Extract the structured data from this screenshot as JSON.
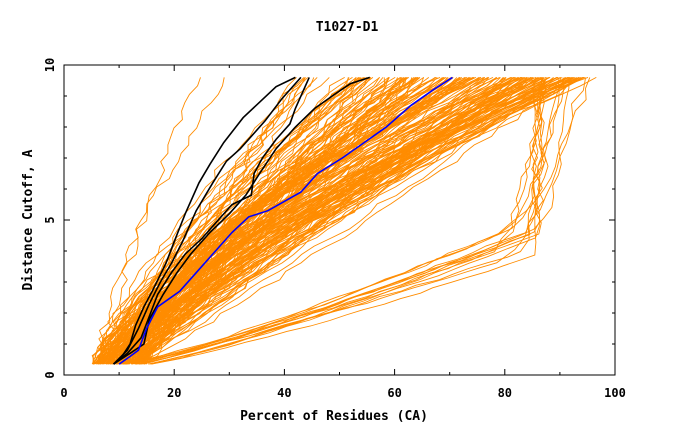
{
  "chart_data": {
    "type": "line",
    "title": "T1027-D1",
    "xlabel": "Percent of Residues (CA)",
    "ylabel": "Distance Cutoff, A",
    "xlim": [
      0,
      100
    ],
    "ylim": [
      0,
      10
    ],
    "x_ticks": [
      "0",
      "20",
      "40",
      "60",
      "80",
      "100"
    ],
    "y_ticks": [
      "0",
      "5",
      "10"
    ],
    "grid": false,
    "legend": "none",
    "colors": {
      "others": "#ff8c00",
      "highlight_black": "#000000",
      "highlight_blue": "#0000ff"
    },
    "highlight_series": [
      {
        "color": "#000000",
        "points": [
          [
            9,
            0.35
          ],
          [
            10.5,
            0.6
          ],
          [
            12,
            1.0
          ],
          [
            13,
            1.6
          ],
          [
            14.5,
            2.2
          ],
          [
            16,
            2.7
          ],
          [
            18.5,
            3.6
          ],
          [
            20,
            4.3
          ],
          [
            22,
            5.2
          ],
          [
            24.5,
            6.2
          ],
          [
            26.5,
            6.8
          ],
          [
            29,
            7.5
          ],
          [
            32.5,
            8.3
          ],
          [
            35.5,
            8.8
          ],
          [
            38.5,
            9.3
          ],
          [
            42,
            9.6
          ]
        ]
      },
      {
        "color": "#000000",
        "points": [
          [
            9,
            0.35
          ],
          [
            11.5,
            0.8
          ],
          [
            13.5,
            1.5
          ],
          [
            15.5,
            2.3
          ],
          [
            17.5,
            3.0
          ],
          [
            19.5,
            3.6
          ],
          [
            21.5,
            4.3
          ],
          [
            24,
            5.3
          ],
          [
            27,
            6.2
          ],
          [
            29.5,
            6.9
          ],
          [
            32,
            7.3
          ],
          [
            34,
            7.7
          ],
          [
            36.5,
            8.2
          ],
          [
            39.5,
            8.9
          ],
          [
            43,
            9.6
          ]
        ]
      },
      {
        "color": "#000000",
        "points": [
          [
            9,
            0.35
          ],
          [
            11.5,
            0.7
          ],
          [
            14,
            1.2
          ],
          [
            15.5,
            1.9
          ],
          [
            17,
            2.6
          ],
          [
            19.5,
            3.3
          ],
          [
            22,
            3.9
          ],
          [
            25,
            4.4
          ],
          [
            27.5,
            4.9
          ],
          [
            30.5,
            5.5
          ],
          [
            34,
            5.8
          ],
          [
            34.5,
            6.5
          ],
          [
            36,
            7.0
          ],
          [
            38.5,
            7.6
          ],
          [
            41,
            8.1
          ],
          [
            42,
            8.6
          ],
          [
            44.5,
            9.6
          ]
        ]
      },
      {
        "color": "#000000",
        "points": [
          [
            9,
            0.35
          ],
          [
            12,
            0.7
          ],
          [
            14.5,
            1.0
          ],
          [
            15.5,
            1.8
          ],
          [
            18,
            2.6
          ],
          [
            20.5,
            3.3
          ],
          [
            23,
            3.9
          ],
          [
            26.5,
            4.6
          ],
          [
            30,
            5.2
          ],
          [
            33,
            5.8
          ],
          [
            35.5,
            6.5
          ],
          [
            38.5,
            7.3
          ],
          [
            42,
            8.0
          ],
          [
            45.5,
            8.6
          ],
          [
            49.5,
            9.1
          ],
          [
            52,
            9.4
          ],
          [
            55.5,
            9.6
          ]
        ]
      },
      {
        "color": "#0000ff",
        "points": [
          [
            10,
            0.35
          ],
          [
            12,
            0.6
          ],
          [
            13.5,
            0.8
          ],
          [
            15,
            1.5
          ],
          [
            17,
            2.2
          ],
          [
            21,
            2.7
          ],
          [
            24,
            3.3
          ],
          [
            27.5,
            4.0
          ],
          [
            30.5,
            4.6
          ],
          [
            33.5,
            5.1
          ],
          [
            37,
            5.3
          ],
          [
            43,
            5.9
          ],
          [
            46,
            6.5
          ],
          [
            50.5,
            7.0
          ],
          [
            54.5,
            7.5
          ],
          [
            58.5,
            8.0
          ],
          [
            63,
            8.7
          ],
          [
            67,
            9.2
          ],
          [
            70.5,
            9.6
          ]
        ]
      }
    ]
  }
}
